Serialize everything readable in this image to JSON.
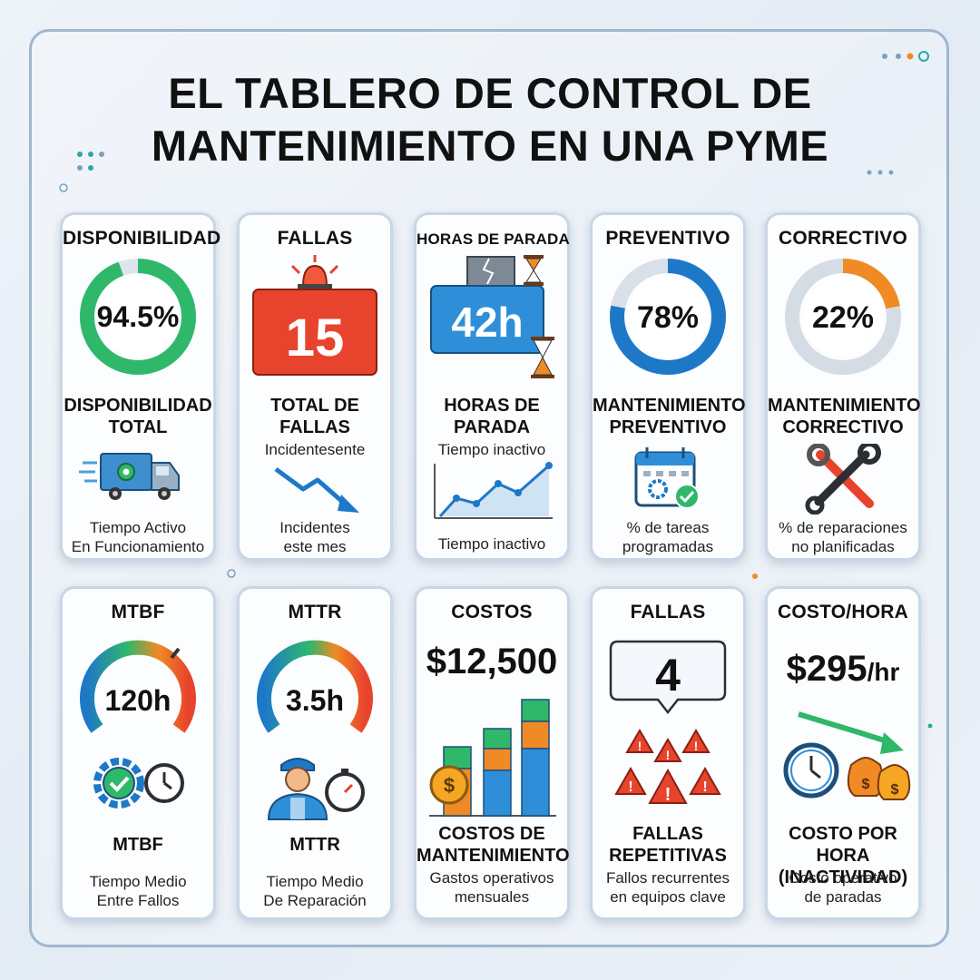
{
  "header": {
    "title_line1": "EL TABLERO DE CONTROL DE",
    "title_line2": "MANTENIMIENTO EN UNA PYME"
  },
  "colors": {
    "green": "#2fb86a",
    "red": "#e8432c",
    "blue": "#1e78c8",
    "orange": "#f08a25",
    "teal": "#2aa7a3"
  },
  "cards": [
    {
      "title": "DISPONIBILIDAD",
      "value": "94.5%",
      "progress_percent": 94.5,
      "subtitle_l1": "DISPONIBILIDAD",
      "subtitle_l2": "TOTAL",
      "desc_l1": "Tiempo Activo",
      "desc_l2": "En Funcionamiento",
      "icon": "truck-gear-icon"
    },
    {
      "title": "FALLAS",
      "value": "15",
      "subtitle_l1": "TOTAL DE",
      "subtitle_l2": "FALLAS",
      "note": "Incidentesente",
      "desc_l1": "Incidentes",
      "desc_l2": "este mes",
      "icon": "trend-down-arrow-icon"
    },
    {
      "title": "HORAS DE PARADA",
      "value": "42h",
      "subtitle_l1": "HORAS DE",
      "subtitle_l2": "PARADA",
      "note": "Tiempo inactivo",
      "desc_l1": "Tiempo inactivo",
      "icon": "line-chart-icon"
    },
    {
      "title": "PREVENTIVO",
      "value": "78%",
      "progress_percent": 78,
      "subtitle_l1": "MANTENIMIENTO",
      "subtitle_l2": "PREVENTIVO",
      "desc_l1": "% de tareas",
      "desc_l2": "programadas",
      "icon": "calendar-gear-icon"
    },
    {
      "title": "CORRECTIVO",
      "value": "22%",
      "progress_percent": 22,
      "subtitle_l1": "MANTENIMIENTO",
      "subtitle_l2": "CORRECTIVO",
      "desc_l1": "% de reparaciones",
      "desc_l2": "no planificadas",
      "icon": "wrench-icon"
    },
    {
      "title": "MTBF",
      "value": "120h",
      "subtitle_l1": "MTBF",
      "desc_l1": "Tiempo Medio",
      "desc_l2": "Entre Fallos",
      "icon": "gear-check-clock-icon"
    },
    {
      "title": "MTTR",
      "value": "3.5h",
      "subtitle_l1": "MTTR",
      "desc_l1": "Tiempo Medio",
      "desc_l2": "De Reparación",
      "icon": "technician-stopwatch-icon"
    },
    {
      "title": "COSTOS",
      "value": "$12,500",
      "subtitle_l1": "COSTOS DE",
      "subtitle_l2": "MANTENIMIENTO",
      "desc_l1": "Gastos operativos",
      "desc_l2": "mensuales",
      "icon": "stacked-bar-coin-icon"
    },
    {
      "title": "FALLAS",
      "value": "4",
      "subtitle_l1": "FALLAS",
      "subtitle_l2": "REPETITIVAS",
      "desc_l1": "Fallos recurrentes",
      "desc_l2": "en equipos clave",
      "icon": "warning-triangles-icon"
    },
    {
      "title": "COSTO/HORA",
      "value": "$295",
      "value_unit": "/hr",
      "subtitle_l1": "COSTO POR HORA",
      "subtitle_l2": "(INACTIVIDAD)",
      "desc_l1": "Costo operativo",
      "desc_l2": "de paradas",
      "icon": "clock-money-bags-icon"
    }
  ]
}
